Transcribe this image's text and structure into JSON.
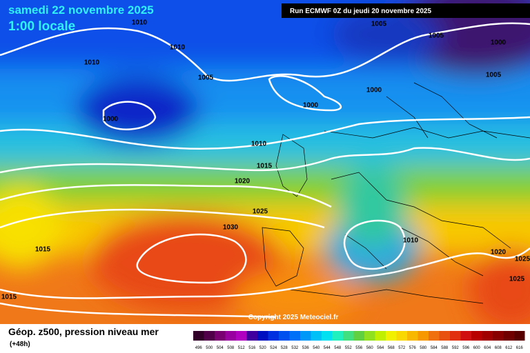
{
  "header": {
    "date": "samedi 22 novembre 2025",
    "time": "1:00 locale",
    "run": "Run ECMWF 0Z du jeudi 20 novembre 2025"
  },
  "isobar_labels": [
    "1010",
    "1010",
    "1010",
    "1005",
    "1000",
    "1005",
    "1005",
    "1000",
    "1005",
    "1000",
    "1000",
    "1010",
    "1015",
    "1020",
    "1025",
    "1030",
    "1015",
    "1015",
    "1010",
    "1020",
    "1025",
    "1025"
  ],
  "copyright": "Copyright 2025 Meteociel.fr",
  "footer": {
    "title": "Géop. z500, pression niveau mer",
    "lead": "(+48h)"
  },
  "legend": {
    "labels": [
      "496",
      "500",
      "504",
      "508",
      "512",
      "516",
      "520",
      "524",
      "528",
      "532",
      "536",
      "540",
      "544",
      "548",
      "552",
      "556",
      "560",
      "564",
      "568",
      "572",
      "576",
      "580",
      "584",
      "588",
      "592",
      "596",
      "600",
      "604",
      "608",
      "612",
      "616"
    ]
  }
}
